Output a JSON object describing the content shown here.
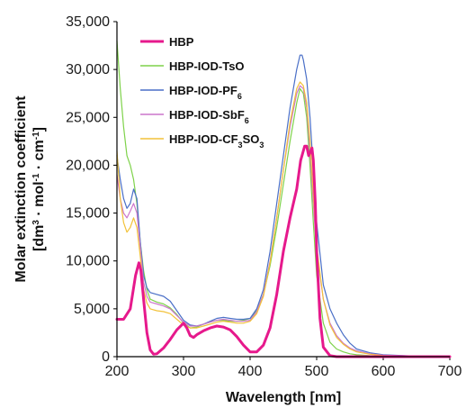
{
  "chart_data": {
    "type": "line",
    "title": "",
    "xlabel": "Wavelength [nm]",
    "ylabel": {
      "line1": "Molar extinction coefficient",
      "line2_parts": [
        "[dm",
        "3",
        " · mol",
        "-1",
        " · cm",
        "-1",
        "]"
      ]
    },
    "xlim": [
      200,
      700
    ],
    "ylim": [
      0,
      35000
    ],
    "x_ticks": [
      200,
      300,
      400,
      500,
      600,
      700
    ],
    "x_tick_labels": [
      "200",
      "300",
      "400",
      "500",
      "600",
      "700"
    ],
    "y_ticks": [
      0,
      5000,
      10000,
      15000,
      20000,
      25000,
      30000,
      35000
    ],
    "y_tick_labels": [
      "0",
      "5,000",
      "10,000",
      "15,000",
      "20,000",
      "25,000",
      "30,000",
      "35,000"
    ],
    "grid": false,
    "legend_position": "top-right",
    "series": [
      {
        "name": "HBP",
        "legend_parts": [
          [
            "HBP",
            false
          ]
        ],
        "color": "#e6198c",
        "width": 3,
        "x": [
          200,
          210,
          220,
          228,
          233,
          236,
          240,
          245,
          250,
          255,
          260,
          270,
          280,
          290,
          300,
          305,
          310,
          315,
          320,
          330,
          340,
          350,
          360,
          370,
          380,
          390,
          400,
          410,
          420,
          430,
          440,
          450,
          460,
          465,
          470,
          473,
          476,
          478,
          480,
          482,
          485,
          488,
          490,
          493,
          495,
          498,
          500,
          505,
          510,
          520,
          530,
          550,
          600,
          700
        ],
        "y": [
          3900,
          3900,
          5000,
          8500,
          9800,
          9000,
          6000,
          2500,
          700,
          250,
          300,
          900,
          1800,
          2800,
          3500,
          3000,
          2200,
          2000,
          2300,
          2700,
          3000,
          3200,
          3100,
          2800,
          2100,
          1200,
          500,
          500,
          1200,
          3000,
          6500,
          11000,
          14500,
          16000,
          17500,
          19000,
          20500,
          21000,
          21500,
          22000,
          22000,
          21000,
          21300,
          21800,
          20500,
          16000,
          11000,
          4000,
          1000,
          100,
          0,
          0,
          0,
          0
        ]
      },
      {
        "name": "HBP-IOD-TsO",
        "legend_parts": [
          [
            "HBP-IOD-TsO",
            false
          ]
        ],
        "color": "#7ed24a",
        "width": 1.2,
        "x": [
          200,
          205,
          210,
          215,
          220,
          225,
          230,
          235,
          240,
          245,
          250,
          260,
          270,
          280,
          290,
          300,
          310,
          320,
          330,
          340,
          350,
          360,
          370,
          380,
          390,
          400,
          410,
          420,
          430,
          440,
          450,
          460,
          470,
          475,
          480,
          485,
          490,
          495,
          500,
          510,
          520,
          530,
          540,
          550,
          560,
          580,
          600,
          650,
          700
        ],
        "y": [
          33000,
          28000,
          24000,
          21000,
          20000,
          18500,
          16000,
          12000,
          9000,
          7000,
          6000,
          5700,
          5500,
          5100,
          4400,
          3500,
          3000,
          3100,
          3400,
          3600,
          3800,
          3800,
          3700,
          3700,
          3800,
          4000,
          4800,
          6500,
          9500,
          13500,
          18000,
          22500,
          26500,
          28000,
          27500,
          25000,
          20000,
          14000,
          8500,
          3500,
          1500,
          800,
          500,
          300,
          200,
          100,
          50,
          20,
          0
        ]
      },
      {
        "name": "HBP-IOD-PF6",
        "legend_parts": [
          [
            "HBP-IOD-PF",
            false
          ],
          [
            "6",
            true
          ]
        ],
        "color": "#4a6fc7",
        "width": 1.2,
        "x": [
          200,
          205,
          210,
          215,
          220,
          225,
          230,
          235,
          240,
          245,
          250,
          260,
          270,
          280,
          290,
          300,
          310,
          320,
          330,
          340,
          350,
          360,
          370,
          380,
          390,
          400,
          410,
          420,
          430,
          440,
          450,
          460,
          470,
          475,
          478,
          480,
          485,
          490,
          495,
          500,
          510,
          520,
          530,
          540,
          550,
          560,
          580,
          600,
          650,
          700
        ],
        "y": [
          21000,
          18500,
          16500,
          15500,
          16000,
          17500,
          16500,
          12000,
          8500,
          7200,
          6700,
          6500,
          6300,
          5800,
          4800,
          3800,
          3300,
          3200,
          3400,
          3700,
          4000,
          4100,
          4000,
          3900,
          3900,
          4000,
          5000,
          7000,
          11000,
          16000,
          21000,
          26000,
          30000,
          31500,
          31500,
          31000,
          29000,
          25000,
          19500,
          14000,
          7500,
          5000,
          3500,
          2300,
          1400,
          800,
          400,
          200,
          50,
          0
        ]
      },
      {
        "name": "HBP-IOD-SbF6",
        "legend_parts": [
          [
            "HBP-IOD-SbF",
            false
          ],
          [
            "6",
            true
          ]
        ],
        "color": "#cc77cc",
        "width": 1.2,
        "x": [
          200,
          205,
          210,
          215,
          220,
          225,
          230,
          235,
          240,
          245,
          250,
          260,
          270,
          280,
          290,
          300,
          310,
          320,
          330,
          340,
          350,
          360,
          370,
          380,
          390,
          400,
          410,
          420,
          430,
          440,
          450,
          460,
          470,
          475,
          480,
          485,
          490,
          495,
          500,
          510,
          520,
          530,
          540,
          550,
          560,
          580,
          600,
          650,
          700
        ],
        "y": [
          19000,
          16500,
          15000,
          14500,
          15200,
          16000,
          15000,
          11500,
          7800,
          6300,
          5700,
          5500,
          5300,
          5000,
          4300,
          3600,
          3200,
          3200,
          3400,
          3600,
          3800,
          3900,
          3800,
          3700,
          3700,
          3800,
          4700,
          6500,
          10000,
          14500,
          19500,
          24000,
          27500,
          28300,
          28000,
          26000,
          21500,
          16000,
          11000,
          6000,
          3500,
          2200,
          1400,
          900,
          600,
          300,
          150,
          50,
          0
        ]
      },
      {
        "name": "HBP-IOD-CF3SO3",
        "legend_parts": [
          [
            "HBP-IOD-CF",
            false
          ],
          [
            "3",
            true
          ],
          [
            "SO",
            false
          ],
          [
            "3",
            true
          ]
        ],
        "color": "#f2c23a",
        "width": 1.2,
        "x": [
          200,
          205,
          210,
          215,
          220,
          225,
          230,
          235,
          240,
          245,
          250,
          260,
          270,
          280,
          290,
          300,
          310,
          320,
          330,
          340,
          350,
          360,
          370,
          380,
          390,
          400,
          410,
          420,
          430,
          440,
          450,
          460,
          470,
          475,
          480,
          485,
          490,
          495,
          500,
          510,
          520,
          530,
          540,
          550,
          560,
          580,
          600,
          650,
          700
        ],
        "y": [
          21500,
          16500,
          14000,
          13000,
          13500,
          14500,
          13500,
          10500,
          7000,
          5600,
          5000,
          4800,
          4700,
          4500,
          3900,
          3300,
          3000,
          3000,
          3200,
          3400,
          3600,
          3700,
          3600,
          3500,
          3500,
          3700,
          4500,
          6300,
          9800,
          14500,
          19500,
          24500,
          28000,
          28700,
          28300,
          26500,
          22500,
          17000,
          11500,
          6000,
          3300,
          2000,
          1300,
          800,
          500,
          250,
          100,
          30,
          0
        ]
      }
    ]
  }
}
